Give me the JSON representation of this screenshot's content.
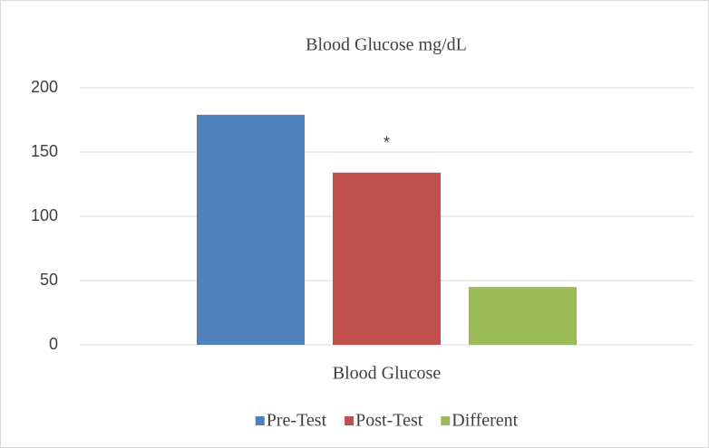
{
  "chart_data": {
    "type": "bar",
    "title": "Blood Glucose mg/dL",
    "categories": [
      "Blood Glucose"
    ],
    "series": [
      {
        "name": "Pre-Test",
        "color": "#4f81bd",
        "values": [
          179
        ]
      },
      {
        "name": "Post-Test",
        "color": "#c0504d",
        "values": [
          134
        ]
      },
      {
        "name": "Different",
        "color": "#9bbb59",
        "values": [
          45
        ]
      }
    ],
    "annotation": "*",
    "ylim": [
      0,
      200
    ],
    "yticks": [
      0,
      50,
      100,
      150,
      200
    ],
    "grid": true,
    "legend": "bottom"
  }
}
